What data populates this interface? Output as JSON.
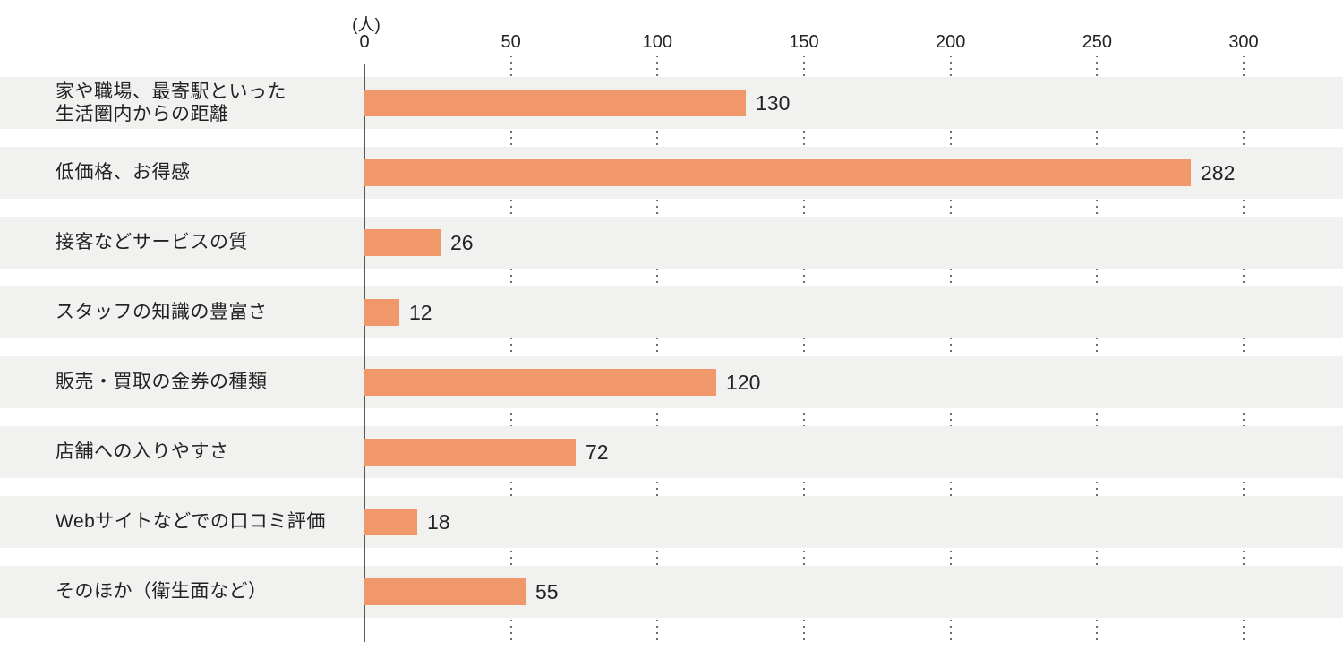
{
  "chart_data": {
    "type": "bar",
    "orientation": "horizontal",
    "title": "",
    "unit_label": "(人)",
    "categories": [
      "家や職場、最寄駅といった\n生活圏内からの距離",
      "低価格、お得感",
      "接客などサービスの質",
      "スタッフの知識の豊富さ",
      "販売・買取の金券の種類",
      "店舗への入りやすさ",
      "Webサイトなどでの口コミ評価",
      "そのほか（衛生面など）"
    ],
    "values": [
      130,
      282,
      26,
      12,
      120,
      72,
      18,
      55
    ],
    "xlabel": "",
    "ylabel": "",
    "xlim": [
      0,
      300
    ],
    "x_ticks": [
      0,
      50,
      100,
      150,
      200,
      250,
      300
    ],
    "grid": "dotted-vertical",
    "legend": "none",
    "colors": {
      "bar": "#F0986A",
      "row_stripe": "#F1F1F0",
      "axis": "#595757",
      "grid_dots": "#6E6E6E",
      "text": "#222222"
    }
  }
}
